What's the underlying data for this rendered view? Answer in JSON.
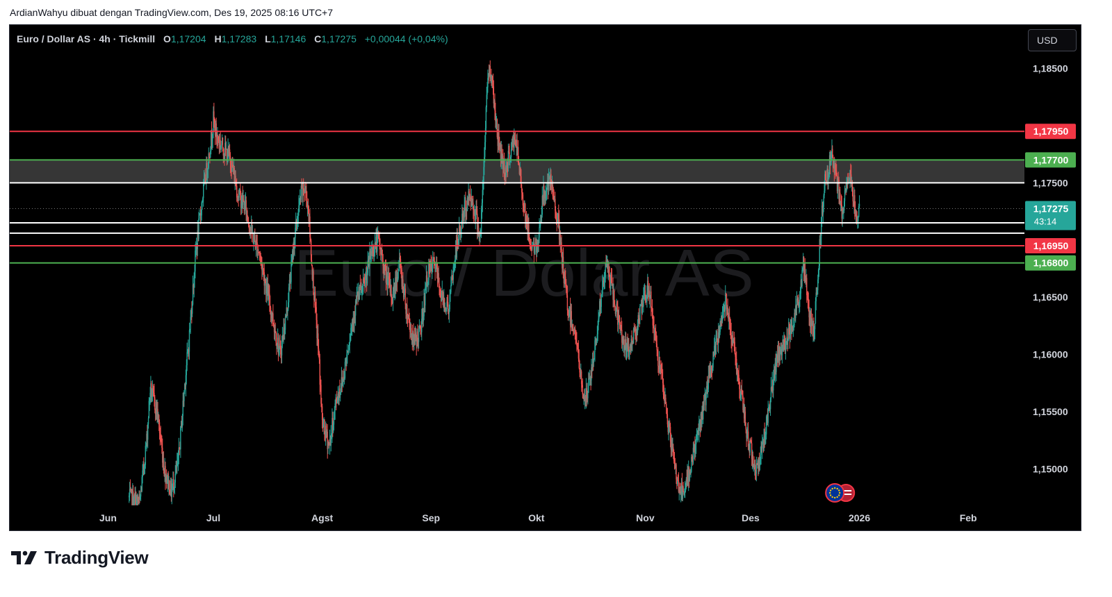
{
  "header": {
    "attribution": "ArdianWahyu dibuat dengan TradingView.com, Des 19, 2025 08:16 UTC+7"
  },
  "legend": {
    "symbol": "Euro / Dollar AS · 4h · Tickmill",
    "o_label": "O",
    "o_value": "1,17204",
    "h_label": "H",
    "h_value": "1,17283",
    "l_label": "L",
    "l_value": "1,17146",
    "c_label": "C",
    "c_value": "1,17275",
    "change": "+0,00044 (+0,04%)"
  },
  "currency_button": "USD",
  "watermark": "Euro / Dolar AS",
  "footer": {
    "brand": "TradingView"
  },
  "colors": {
    "background": "#000000",
    "up": "#26a69a",
    "down": "#ef5350",
    "resistance": "#f23645",
    "support": "#4caf50",
    "zone": "#363636",
    "white_line": "#ffffff"
  },
  "chart_data": {
    "type": "candlestick",
    "symbol": "EURUSD",
    "timeframe": "4h",
    "ylim": [
      1.1468,
      1.1888
    ],
    "y_ticks": [
      {
        "value": 1.185,
        "label": "1,18500"
      },
      {
        "value": 1.175,
        "label": "1,17500"
      },
      {
        "value": 1.165,
        "label": "1,16500"
      },
      {
        "value": 1.16,
        "label": "1,16000"
      },
      {
        "value": 1.155,
        "label": "1,15500"
      },
      {
        "value": 1.15,
        "label": "1,15000"
      }
    ],
    "x_ticks": [
      {
        "date": "2025-06-01",
        "label": "Jun"
      },
      {
        "date": "2025-07-01",
        "label": "Jul"
      },
      {
        "date": "2025-08-01",
        "label": "Agst"
      },
      {
        "date": "2025-09-01",
        "label": "Sep"
      },
      {
        "date": "2025-10-01",
        "label": "Okt"
      },
      {
        "date": "2025-11-01",
        "label": "Nov"
      },
      {
        "date": "2025-12-01",
        "label": "Des"
      },
      {
        "date": "2026-01-01",
        "label": "2026"
      },
      {
        "date": "2026-02-01",
        "label": "Feb"
      }
    ],
    "x_range": [
      "2025-05-04",
      "2026-02-17"
    ],
    "levels": [
      {
        "value": 1.1795,
        "label": "1,17950",
        "kind": "resistance"
      },
      {
        "value": 1.177,
        "label": "1,17700",
        "kind": "support"
      },
      {
        "value": 1.175,
        "label": "",
        "kind": "white"
      },
      {
        "value": 1.1715,
        "label": "",
        "kind": "white"
      },
      {
        "value": 1.1706,
        "label": "",
        "kind": "white"
      },
      {
        "value": 1.1695,
        "label": "1,16950",
        "kind": "resistance"
      },
      {
        "value": 1.168,
        "label": "1,16800",
        "kind": "support"
      }
    ],
    "zone": {
      "from": 1.175,
      "to": 1.177
    },
    "current_price": {
      "value": 1.17275,
      "label": "1,17275",
      "countdown": "43:14"
    },
    "price_path": [
      [
        "2025-06-07",
        1.1475
      ],
      [
        "2025-06-10",
        1.147
      ],
      [
        "2025-06-12",
        1.1525
      ],
      [
        "2025-06-13",
        1.157
      ],
      [
        "2025-06-15",
        1.155
      ],
      [
        "2025-06-17",
        1.15
      ],
      [
        "2025-06-19",
        1.148
      ],
      [
        "2025-06-21",
        1.1505
      ],
      [
        "2025-06-23",
        1.158
      ],
      [
        "2025-06-24",
        1.161
      ],
      [
        "2025-06-26",
        1.169
      ],
      [
        "2025-06-28",
        1.174
      ],
      [
        "2025-06-30",
        1.178
      ],
      [
        "2025-07-01",
        1.1805
      ],
      [
        "2025-07-02",
        1.179
      ],
      [
        "2025-07-04",
        1.178
      ],
      [
        "2025-07-06",
        1.177
      ],
      [
        "2025-07-08",
        1.174
      ],
      [
        "2025-07-10",
        1.173
      ],
      [
        "2025-07-12",
        1.1705
      ],
      [
        "2025-07-14",
        1.169
      ],
      [
        "2025-07-16",
        1.166
      ],
      [
        "2025-07-18",
        1.163
      ],
      [
        "2025-07-20",
        1.16
      ],
      [
        "2025-07-22",
        1.164
      ],
      [
        "2025-07-24",
        1.17
      ],
      [
        "2025-07-26",
        1.174
      ],
      [
        "2025-07-27",
        1.1745
      ],
      [
        "2025-07-28",
        1.173
      ],
      [
        "2025-07-29",
        1.168
      ],
      [
        "2025-07-31",
        1.16
      ],
      [
        "2025-08-01",
        1.154
      ],
      [
        "2025-08-03",
        1.152
      ],
      [
        "2025-08-05",
        1.156
      ],
      [
        "2025-08-07",
        1.158
      ],
      [
        "2025-08-09",
        1.162
      ],
      [
        "2025-08-11",
        1.165
      ],
      [
        "2025-08-13",
        1.166
      ],
      [
        "2025-08-15",
        1.169
      ],
      [
        "2025-08-17",
        1.17
      ],
      [
        "2025-08-19",
        1.167
      ],
      [
        "2025-08-21",
        1.165
      ],
      [
        "2025-08-23",
        1.168
      ],
      [
        "2025-08-25",
        1.164
      ],
      [
        "2025-08-27",
        1.161
      ],
      [
        "2025-08-29",
        1.162
      ],
      [
        "2025-08-31",
        1.167
      ],
      [
        "2025-09-02",
        1.168
      ],
      [
        "2025-09-04",
        1.165
      ],
      [
        "2025-09-06",
        1.164
      ],
      [
        "2025-09-08",
        1.169
      ],
      [
        "2025-09-10",
        1.172
      ],
      [
        "2025-09-12",
        1.174
      ],
      [
        "2025-09-14",
        1.172
      ],
      [
        "2025-09-15",
        1.17
      ],
      [
        "2025-09-16",
        1.176
      ],
      [
        "2025-09-17",
        1.184
      ],
      [
        "2025-09-18",
        1.185
      ],
      [
        "2025-09-20",
        1.179
      ],
      [
        "2025-09-22",
        1.176
      ],
      [
        "2025-09-24",
        1.178
      ],
      [
        "2025-09-25",
        1.179
      ],
      [
        "2025-09-27",
        1.174
      ],
      [
        "2025-09-29",
        1.17
      ],
      [
        "2025-10-01",
        1.169
      ],
      [
        "2025-10-03",
        1.174
      ],
      [
        "2025-10-05",
        1.175
      ],
      [
        "2025-10-07",
        1.172
      ],
      [
        "2025-10-08",
        1.169
      ],
      [
        "2025-10-10",
        1.164
      ],
      [
        "2025-10-12",
        1.162
      ],
      [
        "2025-10-14",
        1.157
      ],
      [
        "2025-10-15",
        1.156
      ],
      [
        "2025-10-17",
        1.159
      ],
      [
        "2025-10-19",
        1.164
      ],
      [
        "2025-10-21",
        1.168
      ],
      [
        "2025-10-23",
        1.165
      ],
      [
        "2025-10-25",
        1.162
      ],
      [
        "2025-10-27",
        1.16
      ],
      [
        "2025-10-29",
        1.162
      ],
      [
        "2025-10-31",
        1.164
      ],
      [
        "2025-11-02",
        1.166
      ],
      [
        "2025-11-04",
        1.161
      ],
      [
        "2025-11-06",
        1.157
      ],
      [
        "2025-11-08",
        1.153
      ],
      [
        "2025-11-10",
        1.149
      ],
      [
        "2025-11-12",
        1.1475
      ],
      [
        "2025-11-14",
        1.1505
      ],
      [
        "2025-11-16",
        1.153
      ],
      [
        "2025-11-18",
        1.156
      ],
      [
        "2025-11-20",
        1.159
      ],
      [
        "2025-11-22",
        1.162
      ],
      [
        "2025-11-24",
        1.165
      ],
      [
        "2025-11-26",
        1.161
      ],
      [
        "2025-11-28",
        1.157
      ],
      [
        "2025-11-30",
        1.153
      ],
      [
        "2025-12-02",
        1.1505
      ],
      [
        "2025-12-03",
        1.15
      ],
      [
        "2025-12-05",
        1.153
      ],
      [
        "2025-12-07",
        1.157
      ],
      [
        "2025-12-09",
        1.16
      ],
      [
        "2025-12-11",
        1.161
      ],
      [
        "2025-12-13",
        1.163
      ],
      [
        "2025-12-15",
        1.165
      ],
      [
        "2025-12-16",
        1.168
      ],
      [
        "2025-12-17",
        1.1655
      ],
      [
        "2025-12-18",
        1.163
      ],
      [
        "2025-12-19",
        1.162
      ],
      [
        "2025-12-20",
        1.166
      ],
      [
        "2025-12-21",
        1.171
      ],
      [
        "2025-12-22",
        1.175
      ],
      [
        "2025-12-23",
        1.176
      ],
      [
        "2025-12-24",
        1.1775
      ],
      [
        "2025-12-25",
        1.176
      ],
      [
        "2025-12-26",
        1.1745
      ],
      [
        "2025-12-27",
        1.172
      ],
      [
        "2025-12-28",
        1.174
      ],
      [
        "2025-12-29",
        1.176
      ],
      [
        "2025-12-30",
        1.1745
      ],
      [
        "2025-12-31",
        1.172
      ],
      [
        "2026-01-01",
        1.17275
      ]
    ]
  }
}
